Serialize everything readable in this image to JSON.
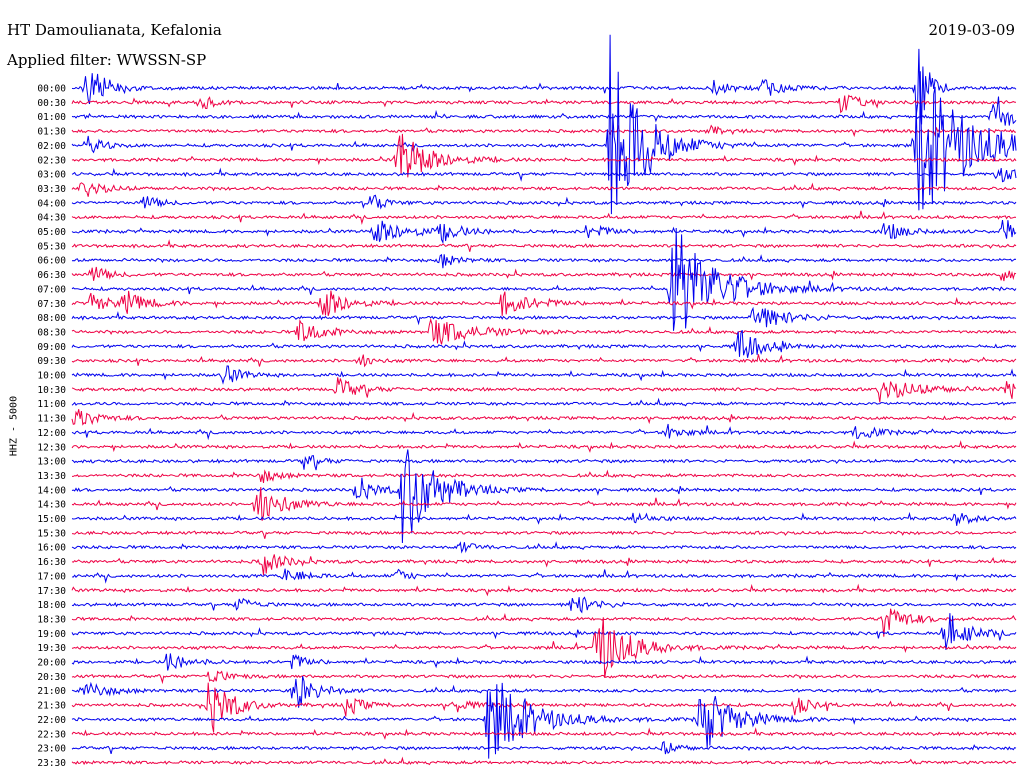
{
  "header": {
    "station": "HT Damoulianata, Kefalonia",
    "filter": "Applied filter: WWSSN-SP",
    "date": "2019-03-09"
  },
  "chart_data": {
    "type": "line",
    "title": "HT Damoulianata, Kefalonia",
    "subtitle": "Applied filter: WWSSN-SP",
    "date": "2019-03-09",
    "ylabel": "HHZ - 5000",
    "xlabel": "",
    "grid": false,
    "colors": {
      "blue": "#0000ee",
      "red": "#ee0044"
    },
    "row_colors": [
      "blue",
      "red"
    ],
    "rows": [
      "00:00",
      "00:30",
      "01:00",
      "01:30",
      "02:00",
      "02:30",
      "03:00",
      "03:30",
      "04:00",
      "04:30",
      "05:00",
      "05:30",
      "06:00",
      "06:30",
      "07:00",
      "07:30",
      "08:00",
      "08:30",
      "09:00",
      "09:30",
      "10:00",
      "10:30",
      "11:00",
      "11:30",
      "12:00",
      "12:30",
      "13:00",
      "13:30",
      "14:00",
      "14:30",
      "15:00",
      "15:30",
      "16:00",
      "16:30",
      "17:00",
      "17:30",
      "18:00",
      "18:30",
      "19:00",
      "19:30",
      "20:00",
      "20:30",
      "21:00",
      "21:30",
      "22:00",
      "22:30",
      "23:00",
      "23:30"
    ],
    "events": [
      {
        "row": 0,
        "x": 0.015,
        "amp": 24,
        "dur": 0.02
      },
      {
        "row": 0,
        "x": 0.68,
        "amp": 8,
        "dur": 0.015
      },
      {
        "row": 0,
        "x": 0.73,
        "amp": 9,
        "dur": 0.02
      },
      {
        "row": 0,
        "x": 0.895,
        "amp": 60,
        "dur": 0.01
      },
      {
        "row": 1,
        "x": 0.135,
        "amp": 8,
        "dur": 0.015
      },
      {
        "row": 1,
        "x": 0.815,
        "amp": 14,
        "dur": 0.012
      },
      {
        "row": 2,
        "x": 0.975,
        "amp": 14,
        "dur": 0.015
      },
      {
        "row": 2,
        "x": 0.98,
        "amp": 16,
        "dur": 0.01
      },
      {
        "row": 3,
        "x": 0.675,
        "amp": 6,
        "dur": 0.01
      },
      {
        "row": 4,
        "x": 0.015,
        "amp": 10,
        "dur": 0.015
      },
      {
        "row": 4,
        "x": 0.57,
        "amp": 110,
        "dur": 0.03
      },
      {
        "row": 4,
        "x": 0.895,
        "amp": 80,
        "dur": 0.05
      },
      {
        "row": 5,
        "x": 0.345,
        "amp": 30,
        "dur": 0.03
      },
      {
        "row": 6,
        "x": 0.98,
        "amp": 10,
        "dur": 0.015
      },
      {
        "row": 7,
        "x": 0.01,
        "amp": 10,
        "dur": 0.02
      },
      {
        "row": 8,
        "x": 0.075,
        "amp": 8,
        "dur": 0.015
      },
      {
        "row": 8,
        "x": 0.31,
        "amp": 12,
        "dur": 0.015
      },
      {
        "row": 10,
        "x": 0.32,
        "amp": 14,
        "dur": 0.03
      },
      {
        "row": 10,
        "x": 0.39,
        "amp": 10,
        "dur": 0.02
      },
      {
        "row": 10,
        "x": 0.545,
        "amp": 8,
        "dur": 0.02
      },
      {
        "row": 10,
        "x": 0.86,
        "amp": 10,
        "dur": 0.02
      },
      {
        "row": 10,
        "x": 0.985,
        "amp": 12,
        "dur": 0.015
      },
      {
        "row": 12,
        "x": 0.39,
        "amp": 8,
        "dur": 0.015
      },
      {
        "row": 13,
        "x": 0.02,
        "amp": 10,
        "dur": 0.015
      },
      {
        "row": 13,
        "x": 0.985,
        "amp": 8,
        "dur": 0.015
      },
      {
        "row": 14,
        "x": 0.635,
        "amp": 70,
        "dur": 0.04
      },
      {
        "row": 15,
        "x": 0.02,
        "amp": 10,
        "dur": 0.02
      },
      {
        "row": 15,
        "x": 0.055,
        "amp": 12,
        "dur": 0.02
      },
      {
        "row": 15,
        "x": 0.265,
        "amp": 20,
        "dur": 0.02
      },
      {
        "row": 15,
        "x": 0.455,
        "amp": 12,
        "dur": 0.03
      },
      {
        "row": 16,
        "x": 0.72,
        "amp": 15,
        "dur": 0.03
      },
      {
        "row": 17,
        "x": 0.24,
        "amp": 15,
        "dur": 0.02
      },
      {
        "row": 17,
        "x": 0.38,
        "amp": 15,
        "dur": 0.04
      },
      {
        "row": 18,
        "x": 0.705,
        "amp": 20,
        "dur": 0.02
      },
      {
        "row": 19,
        "x": 0.305,
        "amp": 8,
        "dur": 0.01
      },
      {
        "row": 20,
        "x": 0.16,
        "amp": 12,
        "dur": 0.015
      },
      {
        "row": 21,
        "x": 0.28,
        "amp": 12,
        "dur": 0.02
      },
      {
        "row": 21,
        "x": 0.855,
        "amp": 12,
        "dur": 0.04
      },
      {
        "row": 21,
        "x": 0.99,
        "amp": 12,
        "dur": 0.015
      },
      {
        "row": 23,
        "x": 0.002,
        "amp": 12,
        "dur": 0.02
      },
      {
        "row": 24,
        "x": 0.63,
        "amp": 8,
        "dur": 0.015
      },
      {
        "row": 24,
        "x": 0.83,
        "amp": 8,
        "dur": 0.02
      },
      {
        "row": 26,
        "x": 0.245,
        "amp": 8,
        "dur": 0.015
      },
      {
        "row": 27,
        "x": 0.2,
        "amp": 8,
        "dur": 0.015
      },
      {
        "row": 28,
        "x": 0.3,
        "amp": 14,
        "dur": 0.02
      },
      {
        "row": 28,
        "x": 0.35,
        "amp": 60,
        "dur": 0.03
      },
      {
        "row": 29,
        "x": 0.195,
        "amp": 22,
        "dur": 0.025
      },
      {
        "row": 30,
        "x": 0.595,
        "amp": 8,
        "dur": 0.015
      },
      {
        "row": 30,
        "x": 0.935,
        "amp": 8,
        "dur": 0.015
      },
      {
        "row": 32,
        "x": 0.41,
        "amp": 6,
        "dur": 0.015
      },
      {
        "row": 33,
        "x": 0.2,
        "amp": 14,
        "dur": 0.02
      },
      {
        "row": 34,
        "x": 0.225,
        "amp": 8,
        "dur": 0.02
      },
      {
        "row": 34,
        "x": 0.345,
        "amp": 8,
        "dur": 0.01
      },
      {
        "row": 36,
        "x": 0.175,
        "amp": 8,
        "dur": 0.015
      },
      {
        "row": 36,
        "x": 0.53,
        "amp": 12,
        "dur": 0.02
      },
      {
        "row": 37,
        "x": 0.86,
        "amp": 18,
        "dur": 0.02
      },
      {
        "row": 38,
        "x": 0.925,
        "amp": 24,
        "dur": 0.02
      },
      {
        "row": 39,
        "x": 0.555,
        "amp": 40,
        "dur": 0.03
      },
      {
        "row": 40,
        "x": 0.1,
        "amp": 10,
        "dur": 0.02
      },
      {
        "row": 40,
        "x": 0.23,
        "amp": 10,
        "dur": 0.015
      },
      {
        "row": 41,
        "x": 0.145,
        "amp": 10,
        "dur": 0.015
      },
      {
        "row": 42,
        "x": 0.015,
        "amp": 10,
        "dur": 0.02
      },
      {
        "row": 42,
        "x": 0.235,
        "amp": 22,
        "dur": 0.02
      },
      {
        "row": 43,
        "x": 0.145,
        "amp": 35,
        "dur": 0.02
      },
      {
        "row": 43,
        "x": 0.29,
        "amp": 12,
        "dur": 0.015
      },
      {
        "row": 43,
        "x": 0.405,
        "amp": 8,
        "dur": 0.015
      },
      {
        "row": 43,
        "x": 0.765,
        "amp": 10,
        "dur": 0.015
      },
      {
        "row": 44,
        "x": 0.44,
        "amp": 45,
        "dur": 0.04
      },
      {
        "row": 44,
        "x": 0.665,
        "amp": 38,
        "dur": 0.03
      },
      {
        "row": 46,
        "x": 0.625,
        "amp": 8,
        "dur": 0.015
      }
    ]
  }
}
